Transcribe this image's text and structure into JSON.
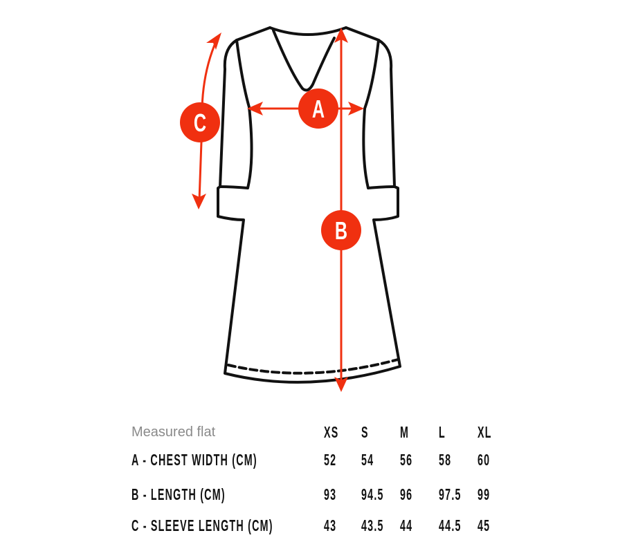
{
  "diagram": {
    "accent_color": "#f03010",
    "outline_color": "#111111",
    "markers": [
      "A",
      "B",
      "C"
    ]
  },
  "table": {
    "header_label": "Measured flat",
    "sizes": [
      "XS",
      "S",
      "M",
      "L",
      "XL"
    ],
    "rows": [
      {
        "label": "A - CHEST WIDTH (CM)",
        "values": [
          "52",
          "54",
          "56",
          "58",
          "60"
        ]
      },
      {
        "label": "B - LENGTH (CM)",
        "values": [
          "93",
          "94.5",
          "96",
          "97.5",
          "99"
        ]
      },
      {
        "label": "C - SLEEVE LENGTH (CM)",
        "values": [
          "43",
          "43.5",
          "44",
          "44.5",
          "45"
        ]
      }
    ]
  }
}
